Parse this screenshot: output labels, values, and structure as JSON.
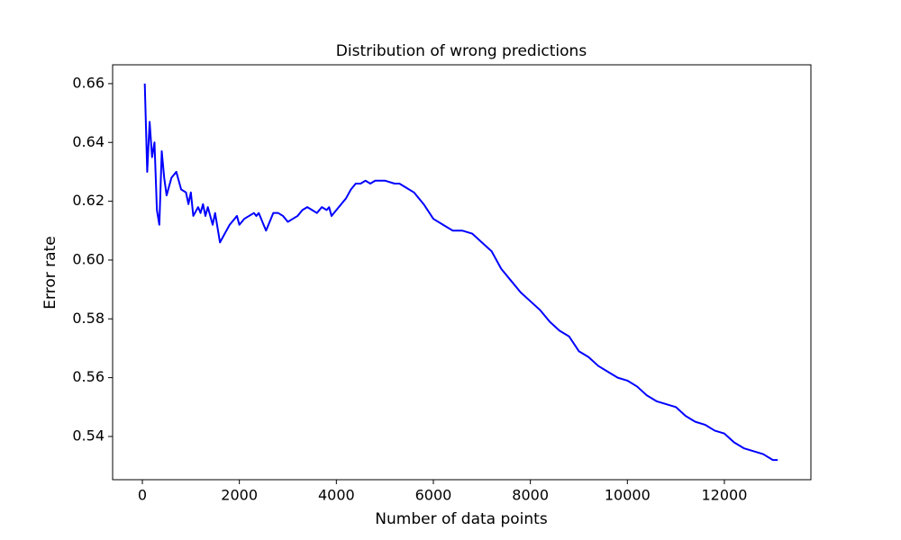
{
  "chart_data": {
    "type": "line",
    "title": "Distribution of wrong predictions",
    "xlabel": "Number of data points",
    "ylabel": "Error rate",
    "x": [
      50,
      100,
      150,
      200,
      250,
      300,
      350,
      400,
      450,
      500,
      600,
      700,
      800,
      900,
      950,
      1000,
      1050,
      1150,
      1200,
      1250,
      1300,
      1350,
      1450,
      1500,
      1600,
      1700,
      1800,
      1900,
      1950,
      2000,
      2100,
      2200,
      2300,
      2350,
      2400,
      2500,
      2550,
      2600,
      2700,
      2800,
      2900,
      3000,
      3100,
      3200,
      3300,
      3400,
      3500,
      3600,
      3700,
      3800,
      3850,
      3900,
      4000,
      4100,
      4200,
      4300,
      4400,
      4500,
      4600,
      4700,
      4800,
      4900,
      5000,
      5200,
      5300,
      5400,
      5600,
      5800,
      6000,
      6200,
      6400,
      6600,
      6800,
      7000,
      7200,
      7400,
      7600,
      7800,
      8000,
      8200,
      8400,
      8600,
      8800,
      9000,
      9200,
      9400,
      9600,
      9800,
      10000,
      10200,
      10400,
      10600,
      10800,
      11000,
      11200,
      11400,
      11600,
      11800,
      12000,
      12200,
      12400,
      12600,
      12800,
      13000,
      13100
    ],
    "series": [
      {
        "name": "Error rate",
        "color": "#0000ff",
        "values": [
          0.66,
          0.63,
          0.647,
          0.635,
          0.64,
          0.617,
          0.612,
          0.637,
          0.628,
          0.622,
          0.628,
          0.63,
          0.624,
          0.623,
          0.619,
          0.623,
          0.615,
          0.618,
          0.616,
          0.619,
          0.615,
          0.618,
          0.612,
          0.616,
          0.606,
          0.609,
          0.612,
          0.614,
          0.615,
          0.612,
          0.614,
          0.615,
          0.616,
          0.615,
          0.616,
          0.612,
          0.61,
          0.612,
          0.616,
          0.616,
          0.615,
          0.613,
          0.614,
          0.615,
          0.617,
          0.618,
          0.617,
          0.616,
          0.618,
          0.617,
          0.618,
          0.615,
          0.617,
          0.619,
          0.621,
          0.624,
          0.626,
          0.626,
          0.627,
          0.626,
          0.627,
          0.627,
          0.627,
          0.626,
          0.626,
          0.625,
          0.623,
          0.619,
          0.614,
          0.612,
          0.61,
          0.61,
          0.609,
          0.606,
          0.603,
          0.597,
          0.593,
          0.589,
          0.586,
          0.583,
          0.579,
          0.576,
          0.574,
          0.569,
          0.567,
          0.564,
          0.562,
          0.56,
          0.559,
          0.557,
          0.554,
          0.552,
          0.551,
          0.55,
          0.547,
          0.545,
          0.544,
          0.542,
          0.541,
          0.538,
          0.536,
          0.535,
          0.534,
          0.532,
          0.532
        ]
      }
    ],
    "xlim": [
      -613,
      13784
    ],
    "ylim": [
      0.5253,
      0.6664
    ],
    "xticks": [
      0,
      2000,
      4000,
      6000,
      8000,
      10000,
      12000
    ],
    "yticks": [
      0.54,
      0.56,
      0.58,
      {
        "value": 0.6,
        "label": "0.60"
      },
      0.62,
      0.64,
      0.66
    ],
    "grid": false
  }
}
